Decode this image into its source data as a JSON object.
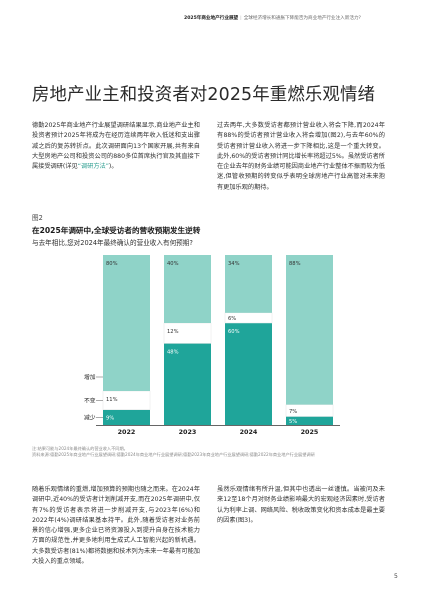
{
  "running_header": {
    "report_title": "2025年商业地产行业展望",
    "divider": "|",
    "subtitle": "全球经济增长和通胀下降能否为商业地产行业注入新活力?"
  },
  "headline": "房地产业主和投资者对2025年重燃乐观情绪",
  "intro": {
    "left_text": "德勤2025年商业地产行业展望调研结果显示,商业地产业主和投资者预计2025年将成为在经历连续两年收入低迷和支出骤减之后的复苏转折点。此次调研面向13个国家开展,共有来自大型房地产公司和投资公司的880多位首席执行官及其直接下属接受调研(详见",
    "left_link": "“调研方法”",
    "left_tail": ")。",
    "right_text": "过去两年,大多数受访者都预计营业收入将会下降,而2024年有88%的受访者预计营业收入将会增加(图2),与去年60%的受访者预计营业收入将进一步下降相比,这是一个重大转变。此外,60%的受访者预计同比增长率将超过5%。虽然受访者所在企业去年的财务业绩可能因商业地产行业整体不振而较为低迷,但管收预期的转变似乎表明全球房地产行业高管对未来抱有更加乐观的期待。"
  },
  "figure": {
    "label": "图2",
    "title": "在2025年调研中,全球受访者的营收预期发生逆转",
    "question": "与去年相比,您对2024年最终确认的营业收入有何预期?",
    "notes": "注:结果可能与2024年最终确认的营业收入不同期。",
    "source": "资料来源:德勤2025年商业地产行业展望调研;德勤2024年商业地产行业展望调研;德勤2023年商业地产行业展望调研;德勤2022年商业地产行业展望调研"
  },
  "chart_data": {
    "type": "bar",
    "stacked": true,
    "orientation": "vertical",
    "categories": [
      "2022",
      "2023",
      "2024",
      "2025"
    ],
    "row_labels": [
      "增加",
      "不变",
      "减少"
    ],
    "series": [
      {
        "name": "减少",
        "values": [
          9,
          48,
          60,
          5
        ],
        "labels": [
          "9%",
          "48%",
          "60%",
          "5%"
        ],
        "color": "#1fa59a"
      },
      {
        "name": "不变",
        "values": [
          11,
          12,
          6,
          7
        ],
        "labels": [
          "11%",
          "12%",
          "6%",
          "7%"
        ],
        "color": "#ffffff"
      },
      {
        "name": "增加",
        "values": [
          80,
          40,
          34,
          88
        ],
        "labels": [
          "80%",
          "40%",
          "34%",
          "88%"
        ],
        "color": "#8fd3c8"
      }
    ],
    "ylim": [
      0,
      100
    ],
    "gridlines": false
  },
  "body_bottom": {
    "left_text": "随着乐观情绪的重燃,增加预算的预期也随之而来。在2024年调研中,近40%的受访者计划削减开支,而在2025年调研中,仅有7%的受访者表示将进一步削减开支,与2023年(6%)和2022年(4%)调研结果基本持平。此外,随着受访者对业务前景的信心增强,更多企业已将资源投入到提升自身在技术能力方面的规范性,并更多地利用生成式人工智能兴起的新机遇。大多数受访者(81%)都将数据和技术列为未来一年最有可能加大投入的重点领域。",
    "right_text": "虽然乐观情绪有所升温,但其中也透出一丝谨慎。当被问及未来12至18个月对财务业绩影响最大的宏观经济因素时,受访者认为利率上调、网络风险、税收政策变化和资本成本是最主要的因素(图3)。"
  },
  "page_number": "5"
}
